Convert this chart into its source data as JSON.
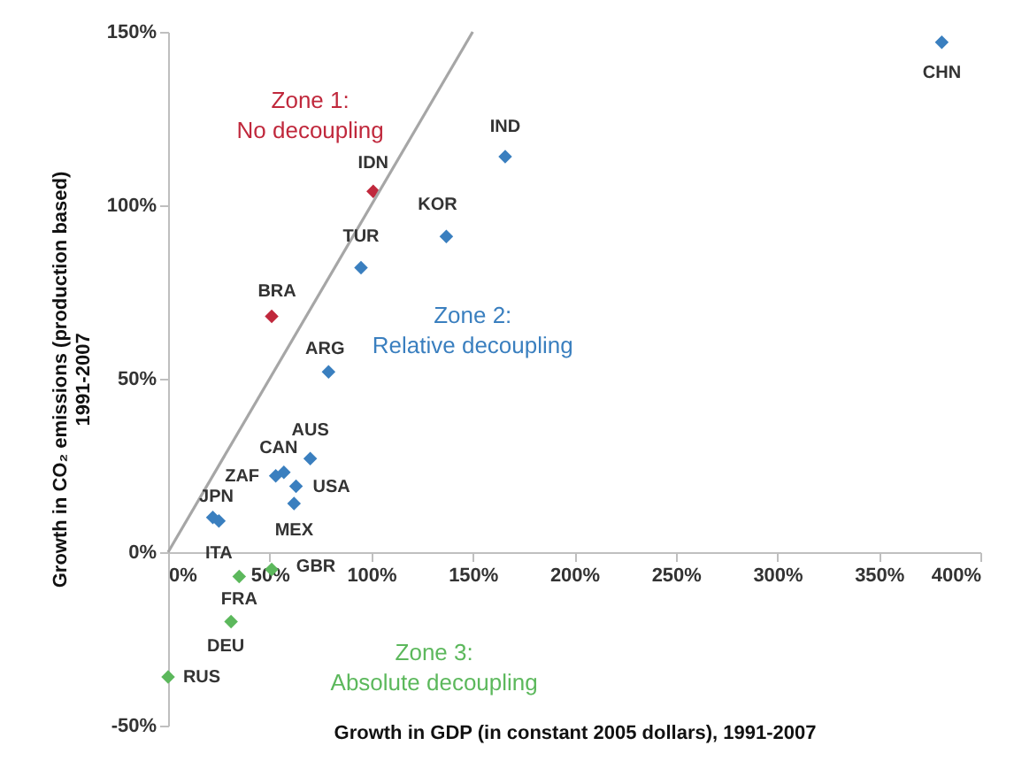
{
  "chart_data": {
    "type": "scatter",
    "xlabel": "Growth in GDP (in constant 2005 dollars), 1991-2007",
    "ylabel": "Growth in CO₂ emissions (production based)\n1991-2007",
    "xlim": [
      0,
      400
    ],
    "xticks": [
      {
        "value": 0,
        "label": "0%"
      },
      {
        "value": 50,
        "label": "50%"
      },
      {
        "value": 100,
        "label": "100%"
      },
      {
        "value": 150,
        "label": "150%"
      },
      {
        "value": 200,
        "label": "200%"
      },
      {
        "value": 250,
        "label": "250%"
      },
      {
        "value": 300,
        "label": "300%"
      },
      {
        "value": 350,
        "label": "350%"
      },
      {
        "value": 400,
        "label": "400%"
      }
    ],
    "ylim": [
      -50,
      150
    ],
    "yticks": [
      {
        "value": -50,
        "label": "-50%"
      },
      {
        "value": 0,
        "label": "0%"
      },
      {
        "value": 50,
        "label": "50%"
      },
      {
        "value": 100,
        "label": "100%"
      },
      {
        "value": 150,
        "label": "150%"
      }
    ],
    "grid": false,
    "marker": "diamond",
    "series": [
      {
        "color": "#c0283c",
        "x": [
          101,
          51
        ],
        "values": [
          104,
          68
        ]
      },
      {
        "color": "#3a7fbf",
        "x": [
          381,
          166,
          137,
          95,
          79,
          70,
          57,
          53,
          63,
          62,
          22,
          25
        ],
        "values": [
          147,
          114,
          91,
          82,
          52,
          27,
          23,
          22,
          19,
          14,
          10,
          9
        ]
      },
      {
        "color": "#5cb85c",
        "x": [
          51,
          35,
          31,
          0
        ],
        "values": [
          -5,
          -7,
          -20,
          -36
        ]
      },
      {
        "type": "line",
        "color": "#a6a6a6",
        "marker": "none",
        "line_style": "solid",
        "x": [
          0,
          150
        ],
        "values": [
          0,
          150
        ]
      }
    ],
    "annotations": [
      "Zone 1:\nNo decoupling",
      "Zone 2:\nRelative decoupling",
      "Zone 3:\nAbsolute decoupling",
      {
        "text": "IDN",
        "x": 101,
        "y": 104
      },
      {
        "text": "BRA",
        "x": 51,
        "y": 68
      },
      {
        "text": "CHN",
        "x": 381,
        "y": 147
      },
      {
        "text": "IND",
        "x": 166,
        "y": 114
      },
      {
        "text": "KOR",
        "x": 137,
        "y": 91
      },
      {
        "text": "TUR",
        "x": 95,
        "y": 82
      },
      {
        "text": "ARG",
        "x": 79,
        "y": 52
      },
      {
        "text": "AUS",
        "x": 70,
        "y": 27
      },
      {
        "text": "CAN",
        "x": 57,
        "y": 23
      },
      {
        "text": "ZAF",
        "x": 53,
        "y": 22
      },
      {
        "text": "USA",
        "x": 63,
        "y": 19
      },
      {
        "text": "MEX",
        "x": 62,
        "y": 14
      },
      {
        "text": "JPN",
        "x": 22,
        "y": 10
      },
      {
        "text": "ITA",
        "x": 25,
        "y": 9
      },
      {
        "text": "GBR",
        "x": 51,
        "y": -5
      },
      {
        "text": "FRA",
        "x": 35,
        "y": -7
      },
      {
        "text": "DEU",
        "x": 31,
        "y": -20
      },
      {
        "text": "RUS",
        "x": 0,
        "y": -36
      }
    ]
  }
}
